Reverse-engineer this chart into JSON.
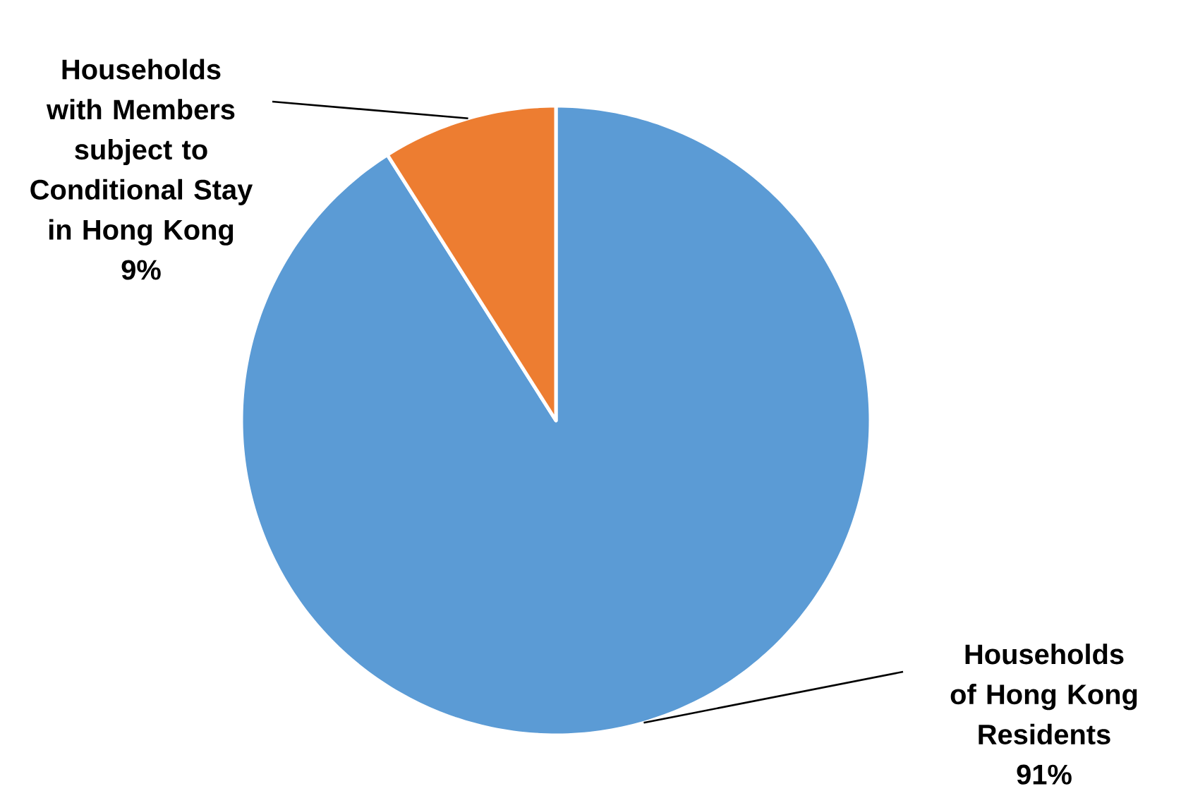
{
  "chart_data": {
    "type": "pie",
    "categories": [
      "Households of Hong Kong Residents",
      "Households with Members subject to Conditional Stay in Hong Kong"
    ],
    "values": [
      91,
      9
    ],
    "value_labels": [
      "91%",
      "9%"
    ],
    "colors": [
      "#5b9bd5",
      "#ed7d31"
    ]
  }
}
